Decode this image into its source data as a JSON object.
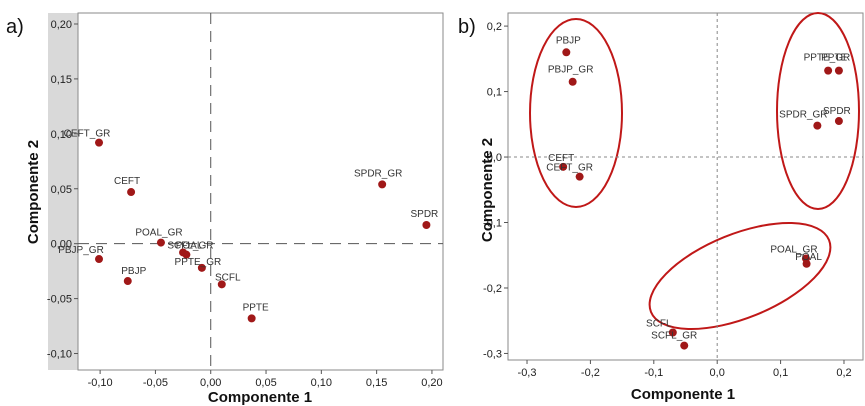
{
  "chart_data": [
    {
      "type": "scatter",
      "panel_label": "a)",
      "xlabel": "Componente 1",
      "ylabel": "Componente 2",
      "xlim": [
        -0.12,
        0.21
      ],
      "ylim": [
        -0.115,
        0.21
      ],
      "xticks": [
        -0.1,
        -0.05,
        0.0,
        0.05,
        0.1,
        0.15,
        0.2
      ],
      "yticks": [
        -0.1,
        -0.05,
        0.0,
        0.05,
        0.1,
        0.15,
        0.2
      ],
      "xtick_labels": [
        "-0,10",
        "-0,05",
        "0,00",
        "0,05",
        "0,10",
        "0,15",
        "0,20"
      ],
      "ytick_labels": [
        "-0,10",
        "-0,05",
        "0,00",
        "0,05",
        "0,10",
        "0,15",
        "0,20"
      ],
      "reference_lines": "dashed at x=0 and y=0",
      "grid": false,
      "marker_color": "#a01818",
      "points": [
        {
          "label": "CEFT_GR",
          "x": -0.101,
          "y": 0.092
        },
        {
          "label": "CEFT",
          "x": -0.072,
          "y": 0.047
        },
        {
          "label": "POAL_GR",
          "x": -0.045,
          "y": 0.001
        },
        {
          "label": "POAL",
          "x": -0.025,
          "y": -0.008
        },
        {
          "label": "SCFL_GR",
          "x": -0.022,
          "y": -0.01
        },
        {
          "label": "PPTE_GR",
          "x": -0.008,
          "y": -0.022
        },
        {
          "label": "PBJP_GR",
          "x": -0.101,
          "y": -0.014
        },
        {
          "label": "PBJP",
          "x": -0.075,
          "y": -0.034
        },
        {
          "label": "SCFL",
          "x": 0.01,
          "y": -0.037
        },
        {
          "label": "PPTE",
          "x": 0.037,
          "y": -0.068
        },
        {
          "label": "SPDR_GR",
          "x": 0.155,
          "y": 0.054
        },
        {
          "label": "SPDR",
          "x": 0.195,
          "y": 0.017
        }
      ]
    },
    {
      "type": "scatter",
      "panel_label": "b)",
      "xlabel": "Componente 1",
      "ylabel": "Componente 2",
      "xlim": [
        -0.33,
        0.23
      ],
      "ylim": [
        -0.31,
        0.22
      ],
      "xticks": [
        -0.3,
        -0.2,
        -0.1,
        0.0,
        0.1,
        0.2
      ],
      "yticks": [
        -0.3,
        -0.2,
        -0.1,
        0.0,
        0.1,
        0.2
      ],
      "xtick_labels": [
        "-0,3",
        "-0,2",
        "-0,1",
        "0,0",
        "0,1",
        "0,2"
      ],
      "ytick_labels": [
        "-0,3",
        "-0,2",
        "-0,1",
        "0,0",
        "0,1",
        "0,2"
      ],
      "reference_lines": "dotted at x=0 and y=0",
      "grid": false,
      "marker_color": "#a01818",
      "group_ellipse_color": "#c01818",
      "points": [
        {
          "label": "PBJP",
          "x": -0.238,
          "y": 0.16
        },
        {
          "label": "PBJP_GR",
          "x": -0.228,
          "y": 0.115
        },
        {
          "label": "CEFT",
          "x": -0.243,
          "y": -0.015
        },
        {
          "label": "CEFT_GR",
          "x": -0.217,
          "y": -0.03
        },
        {
          "label": "PPTE",
          "x": 0.175,
          "y": 0.132
        },
        {
          "label": "PPTE_GR",
          "x": 0.192,
          "y": 0.132
        },
        {
          "label": "SPDR_GR",
          "x": 0.158,
          "y": 0.048
        },
        {
          "label": "SPDR",
          "x": 0.192,
          "y": 0.055
        },
        {
          "label": "POAL_GR",
          "x": 0.14,
          "y": -0.155
        },
        {
          "label": "POAL",
          "x": 0.141,
          "y": -0.163
        },
        {
          "label": "SCFL",
          "x": -0.07,
          "y": -0.268
        },
        {
          "label": "SCFL_GR",
          "x": -0.052,
          "y": -0.288
        }
      ],
      "groups": [
        [
          "PBJP",
          "PBJP_GR",
          "CEFT",
          "CEFT_GR"
        ],
        [
          "PPTE",
          "PPTE_GR",
          "SPDR_GR",
          "SPDR"
        ],
        [
          "POAL_GR",
          "POAL",
          "SCFL",
          "SCFL_GR"
        ]
      ]
    }
  ]
}
